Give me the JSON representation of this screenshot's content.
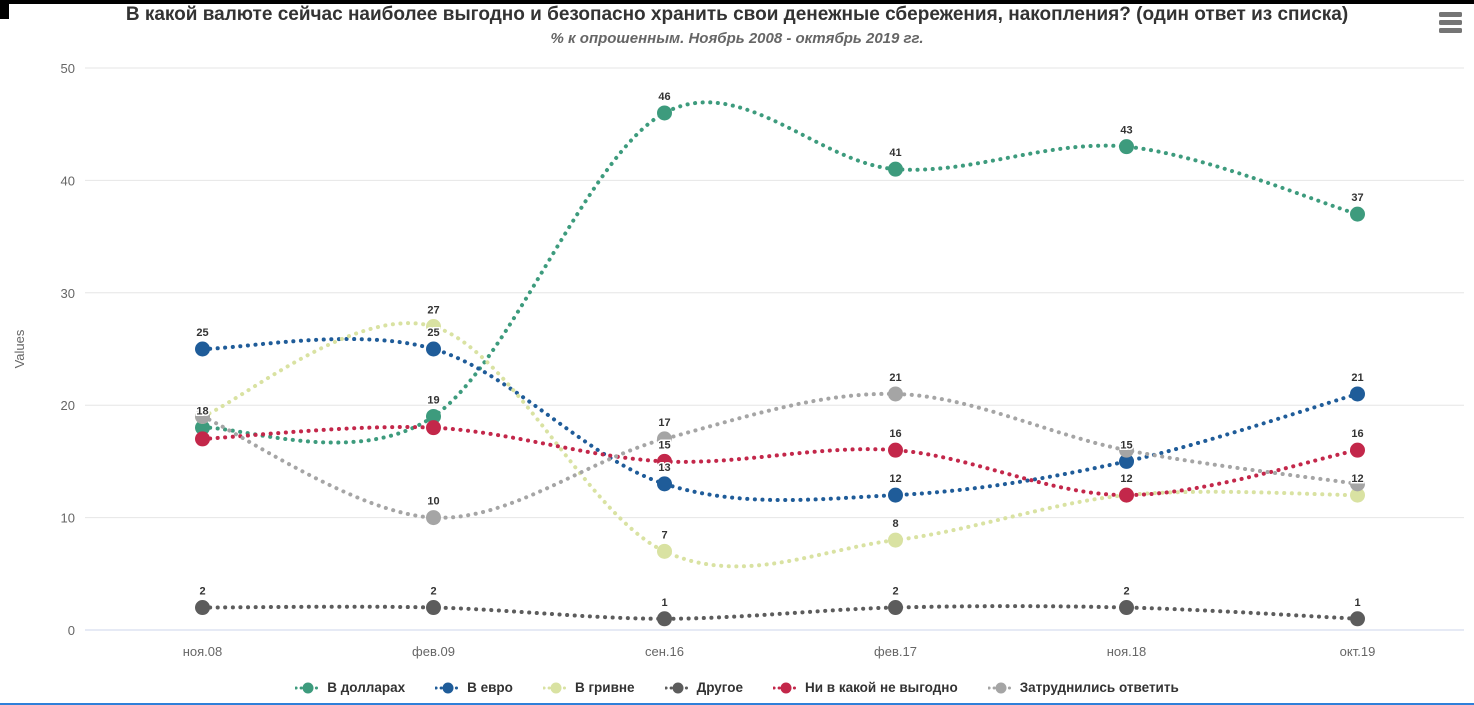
{
  "icons": {
    "menu": "hamburger-menu-icon"
  },
  "chart_data": {
    "type": "line",
    "line_style": "dotted-spline",
    "title": "В какой валюте сейчас наиболее выгодно и безопасно хранить свои денежные сбережения, накопления? (один ответ из списка)",
    "subtitle": "% к опрошенным. Ноябрь 2008 - октябрь 2019 гг.",
    "ylabel": "Values",
    "ylim": [
      0,
      50
    ],
    "yticks": [
      0,
      10,
      20,
      30,
      40,
      50
    ],
    "grid": true,
    "data_labels": true,
    "legend_position": "bottom",
    "categories": [
      "ноя.08",
      "фев.09",
      "сен.16",
      "фев.17",
      "ноя.18",
      "окт.19"
    ],
    "series": [
      {
        "name": "В долларах",
        "color": "#3d9b7d",
        "values": [
          18,
          19,
          46,
          41,
          43,
          37
        ]
      },
      {
        "name": "В евро",
        "color": "#1f5c99",
        "values": [
          25,
          25,
          13,
          12,
          15,
          21
        ]
      },
      {
        "name": "В гривне",
        "color": "#d9e2a2",
        "values": [
          19,
          27,
          7,
          8,
          12,
          12
        ]
      },
      {
        "name": "Другое",
        "color": "#5c5c5c",
        "values": [
          2,
          2,
          1,
          2,
          2,
          1
        ]
      },
      {
        "name": "Ни в какой не выгодно",
        "color": "#c3274a",
        "values": [
          17,
          18,
          15,
          16,
          12,
          16
        ]
      },
      {
        "name": "Затруднились ответить",
        "color": "#a5a5a5",
        "values": [
          19,
          10,
          17,
          21,
          16,
          13
        ]
      }
    ],
    "colors": {
      "grid": "#e6e6e6",
      "axis_line": "#ccd6eb",
      "tick_text": "#666666",
      "axis_title_text": "#666666",
      "data_label": "#333333",
      "title_text": "#333333",
      "subtitle_text": "#666666"
    }
  }
}
